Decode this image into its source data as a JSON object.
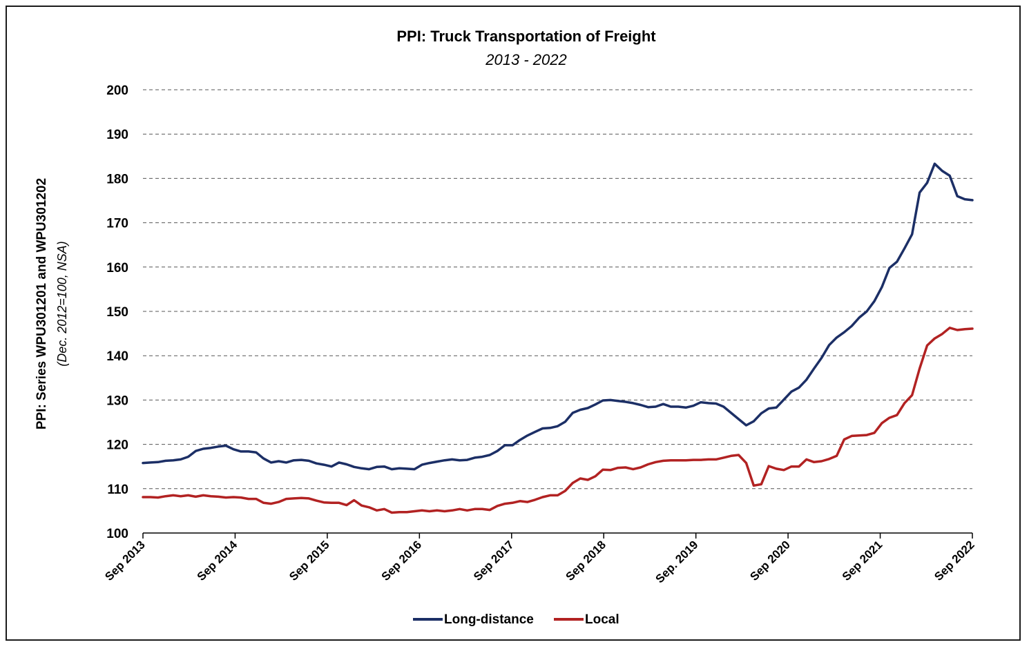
{
  "chart_data": {
    "type": "line",
    "title": "PPI: Truck Transportation of Freight",
    "subtitle": "2013 - 2022",
    "ylabel": "PPI: Series WPU301201 and WPU301202",
    "ylabel_note": "(Dec. 2012=100, NSA)",
    "ylim": [
      100,
      200
    ],
    "yticks": [
      "100",
      "110",
      "120",
      "130",
      "140",
      "150",
      "160",
      "170",
      "180",
      "190",
      "200"
    ],
    "xticks": [
      "Sep 2013",
      "Sep 2014",
      "Sep 2015",
      "Sep 2016",
      "Sep 2017",
      "Sep 2018",
      "Sep. 2019",
      "Sep 2020",
      "Sep 2021",
      "Sep 2022"
    ],
    "x_start": "2013-09",
    "x_end": "2022-09",
    "grid": true,
    "legend_position": "bottom",
    "series": [
      {
        "name": "Long-distance",
        "color": "#1c2f66",
        "values": [
          115.8,
          115.9,
          116.0,
          116.3,
          116.4,
          116.6,
          117.2,
          118.5,
          119.0,
          119.2,
          119.5,
          119.7,
          118.9,
          118.4,
          118.4,
          118.2,
          116.8,
          115.9,
          116.2,
          115.9,
          116.4,
          116.5,
          116.3,
          115.7,
          115.4,
          115.0,
          115.9,
          115.5,
          114.9,
          114.6,
          114.4,
          114.9,
          115.0,
          114.4,
          114.6,
          114.5,
          114.4,
          115.4,
          115.8,
          116.1,
          116.4,
          116.6,
          116.4,
          116.5,
          117.0,
          117.2,
          117.6,
          118.5,
          119.8,
          119.8,
          121.0,
          122.0,
          122.8,
          123.6,
          123.7,
          124.1,
          125.1,
          127.1,
          127.8,
          128.2,
          129.0,
          129.9,
          130.0,
          129.8,
          129.6,
          129.3,
          128.9,
          128.4,
          128.5,
          129.1,
          128.5,
          128.5,
          128.3,
          128.7,
          129.5,
          129.3,
          129.2,
          128.5,
          127.1,
          125.7,
          124.3,
          125.2,
          127.0,
          128.1,
          128.3,
          130.1,
          131.9,
          132.8,
          134.6,
          137.1,
          139.5,
          142.4,
          144.1,
          145.3,
          146.7,
          148.6,
          150.0,
          152.3,
          155.5,
          159.8,
          161.2,
          164.2,
          167.4,
          176.8,
          179.0,
          183.3,
          181.7,
          180.6,
          176.0,
          175.3,
          175.1
        ]
      },
      {
        "name": "Local",
        "color": "#b22222",
        "values": [
          108.1,
          108.1,
          108.0,
          108.3,
          108.5,
          108.3,
          108.5,
          108.2,
          108.5,
          108.3,
          108.2,
          108.0,
          108.1,
          108.0,
          107.7,
          107.7,
          106.8,
          106.6,
          107.0,
          107.7,
          107.8,
          107.9,
          107.8,
          107.3,
          106.9,
          106.8,
          106.8,
          106.3,
          107.4,
          106.2,
          105.8,
          105.1,
          105.4,
          104.6,
          104.7,
          104.7,
          104.9,
          105.1,
          104.9,
          105.1,
          104.9,
          105.1,
          105.4,
          105.1,
          105.4,
          105.4,
          105.2,
          106.1,
          106.6,
          106.8,
          107.2,
          107.0,
          107.5,
          108.1,
          108.5,
          108.5,
          109.5,
          111.3,
          112.3,
          112.0,
          112.8,
          114.3,
          114.2,
          114.7,
          114.8,
          114.4,
          114.8,
          115.5,
          116.0,
          116.3,
          116.4,
          116.4,
          116.4,
          116.5,
          116.5,
          116.6,
          116.6,
          117.0,
          117.4,
          117.6,
          115.8,
          110.7,
          111.0,
          115.1,
          114.5,
          114.2,
          115.0,
          115.0,
          116.6,
          116.0,
          116.2,
          116.7,
          117.4,
          121.1,
          121.9,
          122.0,
          122.1,
          122.6,
          124.8,
          126.0,
          126.6,
          129.3,
          131.1,
          137.1,
          142.3,
          143.9,
          144.9,
          146.3,
          145.8,
          146.0,
          146.1
        ]
      }
    ]
  }
}
